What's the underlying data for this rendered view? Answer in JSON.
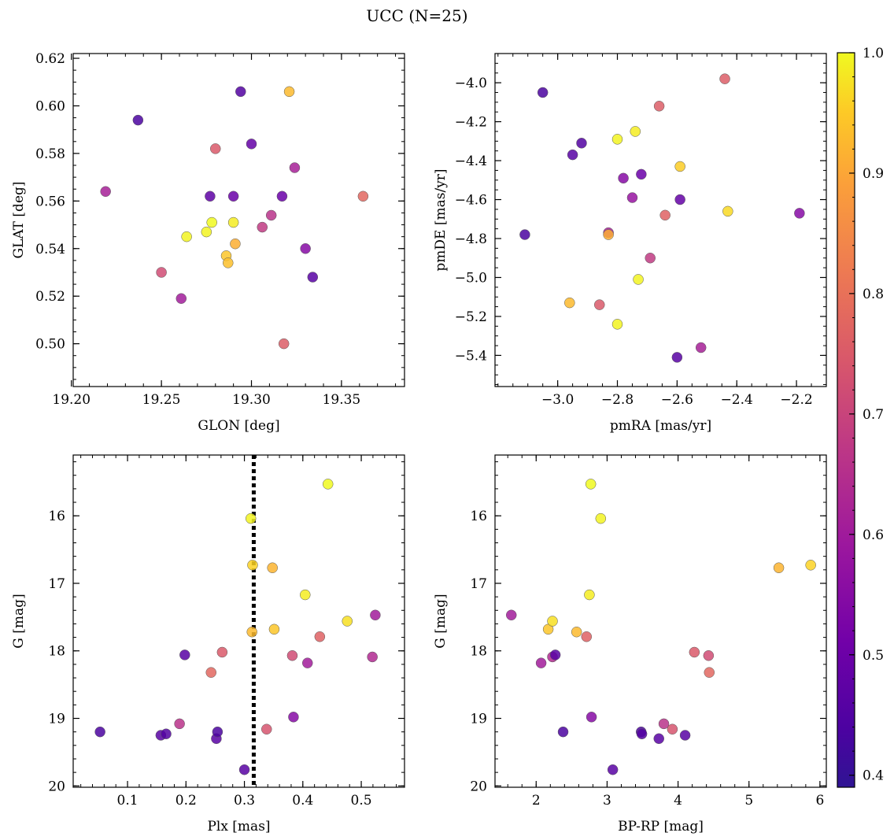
{
  "suptitle": "UCC (N=25)",
  "colorbar": {
    "range": [
      0.39,
      1.0
    ],
    "ticks": [
      "0.4",
      "0.5",
      "0.6",
      "0.7",
      "0.8",
      "0.9",
      "1.0"
    ],
    "tick_values": [
      0.4,
      0.5,
      0.6,
      0.7,
      0.8,
      0.9,
      1.0
    ],
    "colormap": "plasma"
  },
  "chart_data": [
    {
      "type": "scatter",
      "id": "a",
      "xlabel": "GLON [deg]",
      "ylabel": "GLAT [deg]",
      "xlim": [
        19.201,
        19.385
      ],
      "ylim": [
        0.482,
        0.622
      ],
      "yinvert": false,
      "xticks": [
        {
          "v": 19.2,
          "l": "19.20"
        },
        {
          "v": 19.25,
          "l": "19.25"
        },
        {
          "v": 19.3,
          "l": "19.30"
        },
        {
          "v": 19.35,
          "l": "19.35"
        }
      ],
      "yticks": [
        {
          "v": 0.5,
          "l": "0.50"
        },
        {
          "v": 0.52,
          "l": "0.52"
        },
        {
          "v": 0.54,
          "l": "0.54"
        },
        {
          "v": 0.56,
          "l": "0.56"
        },
        {
          "v": 0.58,
          "l": "0.58"
        },
        {
          "v": 0.6,
          "l": "0.60"
        },
        {
          "v": 0.62,
          "l": "0.62"
        }
      ],
      "xminor": 0.01,
      "yminor": 0.005,
      "points": [
        {
          "x": 19.237,
          "y": 0.594,
          "c": 0.42
        },
        {
          "x": 19.219,
          "y": 0.564,
          "c": 0.58
        },
        {
          "x": 19.25,
          "y": 0.53,
          "c": 0.68
        },
        {
          "x": 19.261,
          "y": 0.519,
          "c": 0.57
        },
        {
          "x": 19.264,
          "y": 0.545,
          "c": 0.99
        },
        {
          "x": 19.275,
          "y": 0.547,
          "c": 0.99
        },
        {
          "x": 19.277,
          "y": 0.562,
          "c": 0.45
        },
        {
          "x": 19.278,
          "y": 0.551,
          "c": 1.0
        },
        {
          "x": 19.28,
          "y": 0.582,
          "c": 0.71
        },
        {
          "x": 19.286,
          "y": 0.537,
          "c": 0.92
        },
        {
          "x": 19.287,
          "y": 0.534,
          "c": 0.91
        },
        {
          "x": 19.29,
          "y": 0.551,
          "c": 0.98
        },
        {
          "x": 19.29,
          "y": 0.562,
          "c": 0.47
        },
        {
          "x": 19.291,
          "y": 0.542,
          "c": 0.88
        },
        {
          "x": 19.294,
          "y": 0.606,
          "c": 0.43
        },
        {
          "x": 19.3,
          "y": 0.584,
          "c": 0.46
        },
        {
          "x": 19.306,
          "y": 0.549,
          "c": 0.64
        },
        {
          "x": 19.311,
          "y": 0.554,
          "c": 0.62
        },
        {
          "x": 19.317,
          "y": 0.562,
          "c": 0.47
        },
        {
          "x": 19.318,
          "y": 0.5,
          "c": 0.72
        },
        {
          "x": 19.321,
          "y": 0.606,
          "c": 0.9
        },
        {
          "x": 19.324,
          "y": 0.574,
          "c": 0.58
        },
        {
          "x": 19.33,
          "y": 0.54,
          "c": 0.52
        },
        {
          "x": 19.334,
          "y": 0.528,
          "c": 0.44
        },
        {
          "x": 19.362,
          "y": 0.562,
          "c": 0.74
        }
      ]
    },
    {
      "type": "scatter",
      "id": "b",
      "xlabel": "pmRA [mas/yr]",
      "ylabel": "pmDE [mas/yr]",
      "xlim": [
        -3.21,
        -2.1
      ],
      "ylim": [
        -5.56,
        -3.85
      ],
      "yinvert": false,
      "xticks": [
        {
          "v": -3.0,
          "l": "−3.0"
        },
        {
          "v": -2.8,
          "l": "−2.8"
        },
        {
          "v": -2.6,
          "l": "−2.6"
        },
        {
          "v": -2.4,
          "l": "−2.4"
        },
        {
          "v": -2.2,
          "l": "−2.2"
        }
      ],
      "yticks": [
        {
          "v": -5.4,
          "l": "−5.4"
        },
        {
          "v": -5.2,
          "l": "−5.2"
        },
        {
          "v": -5.0,
          "l": "−5.0"
        },
        {
          "v": -4.8,
          "l": "−4.8"
        },
        {
          "v": -4.6,
          "l": "−4.6"
        },
        {
          "v": -4.4,
          "l": "−4.4"
        },
        {
          "v": -4.2,
          "l": "−4.2"
        },
        {
          "v": -4.0,
          "l": "−4.0"
        }
      ],
      "xminor": 0.05,
      "yminor": 0.05,
      "points": [
        {
          "x": -3.05,
          "y": -4.05,
          "c": 0.42
        },
        {
          "x": -3.11,
          "y": -4.78,
          "c": 0.42
        },
        {
          "x": -2.95,
          "y": -4.37,
          "c": 0.44
        },
        {
          "x": -2.92,
          "y": -4.31,
          "c": 0.43
        },
        {
          "x": -2.96,
          "y": -5.13,
          "c": 0.9
        },
        {
          "x": -2.86,
          "y": -5.14,
          "c": 0.71
        },
        {
          "x": -2.83,
          "y": -4.77,
          "c": 0.58
        },
        {
          "x": -2.83,
          "y": -4.78,
          "c": 0.88
        },
        {
          "x": -2.8,
          "y": -4.29,
          "c": 0.99
        },
        {
          "x": -2.8,
          "y": -5.24,
          "c": 0.99
        },
        {
          "x": -2.78,
          "y": -4.49,
          "c": 0.52
        },
        {
          "x": -2.75,
          "y": -4.59,
          "c": 0.55
        },
        {
          "x": -2.74,
          "y": -4.25,
          "c": 0.98
        },
        {
          "x": -2.73,
          "y": -5.01,
          "c": 0.99
        },
        {
          "x": -2.72,
          "y": -4.47,
          "c": 0.47
        },
        {
          "x": -2.69,
          "y": -4.9,
          "c": 0.64
        },
        {
          "x": -2.66,
          "y": -4.12,
          "c": 0.72
        },
        {
          "x": -2.64,
          "y": -4.68,
          "c": 0.73
        },
        {
          "x": -2.6,
          "y": -5.41,
          "c": 0.44
        },
        {
          "x": -2.59,
          "y": -4.6,
          "c": 0.46
        },
        {
          "x": -2.59,
          "y": -4.43,
          "c": 0.93
        },
        {
          "x": -2.52,
          "y": -5.36,
          "c": 0.58
        },
        {
          "x": -2.44,
          "y": -3.98,
          "c": 0.72
        },
        {
          "x": -2.43,
          "y": -4.66,
          "c": 0.95
        },
        {
          "x": -2.19,
          "y": -4.67,
          "c": 0.52
        }
      ]
    },
    {
      "type": "scatter",
      "id": "c",
      "xlabel": "Plx [mas]",
      "ylabel": "G [mag]",
      "xlim": [
        0.007,
        0.574
      ],
      "ylim": [
        15.1,
        20.02
      ],
      "yinvert": true,
      "vline": 0.316,
      "xticks": [
        {
          "v": 0.1,
          "l": "0.1"
        },
        {
          "v": 0.2,
          "l": "0.2"
        },
        {
          "v": 0.3,
          "l": "0.3"
        },
        {
          "v": 0.4,
          "l": "0.4"
        },
        {
          "v": 0.5,
          "l": "0.5"
        }
      ],
      "yticks": [
        {
          "v": 16,
          "l": "16"
        },
        {
          "v": 17,
          "l": "17"
        },
        {
          "v": 18,
          "l": "18"
        },
        {
          "v": 19,
          "l": "19"
        },
        {
          "v": 20,
          "l": "20"
        }
      ],
      "xminor": 0.02,
      "yminor": 0.2,
      "points": [
        {
          "x": 0.053,
          "y": 19.2,
          "c": 0.42
        },
        {
          "x": 0.157,
          "y": 19.25,
          "c": 0.44
        },
        {
          "x": 0.166,
          "y": 19.23,
          "c": 0.43
        },
        {
          "x": 0.189,
          "y": 19.08,
          "c": 0.62
        },
        {
          "x": 0.198,
          "y": 18.06,
          "c": 0.44
        },
        {
          "x": 0.243,
          "y": 18.32,
          "c": 0.74
        },
        {
          "x": 0.252,
          "y": 19.3,
          "c": 0.44
        },
        {
          "x": 0.254,
          "y": 19.2,
          "c": 0.42
        },
        {
          "x": 0.262,
          "y": 18.02,
          "c": 0.71
        },
        {
          "x": 0.3,
          "y": 19.76,
          "c": 0.44
        },
        {
          "x": 0.311,
          "y": 16.04,
          "c": 0.99
        },
        {
          "x": 0.313,
          "y": 17.72,
          "c": 0.9
        },
        {
          "x": 0.314,
          "y": 16.73,
          "c": 0.94
        },
        {
          "x": 0.338,
          "y": 19.16,
          "c": 0.7
        },
        {
          "x": 0.348,
          "y": 16.77,
          "c": 0.89
        },
        {
          "x": 0.351,
          "y": 17.68,
          "c": 0.92
        },
        {
          "x": 0.382,
          "y": 18.07,
          "c": 0.68
        },
        {
          "x": 0.384,
          "y": 18.98,
          "c": 0.52
        },
        {
          "x": 0.404,
          "y": 17.17,
          "c": 0.98
        },
        {
          "x": 0.408,
          "y": 18.18,
          "c": 0.57
        },
        {
          "x": 0.429,
          "y": 17.79,
          "c": 0.73
        },
        {
          "x": 0.443,
          "y": 15.53,
          "c": 1.0
        },
        {
          "x": 0.476,
          "y": 17.56,
          "c": 0.96
        },
        {
          "x": 0.519,
          "y": 18.09,
          "c": 0.6
        },
        {
          "x": 0.524,
          "y": 17.47,
          "c": 0.57
        }
      ]
    },
    {
      "type": "scatter",
      "id": "d",
      "xlabel": "BP-RP [mag]",
      "ylabel": "G [mag]",
      "xlim": [
        1.42,
        6.09
      ],
      "ylim": [
        15.1,
        20.02
      ],
      "yinvert": true,
      "xticks": [
        {
          "v": 2,
          "l": "2"
        },
        {
          "v": 3,
          "l": "3"
        },
        {
          "v": 4,
          "l": "4"
        },
        {
          "v": 5,
          "l": "5"
        },
        {
          "v": 6,
          "l": "6"
        }
      ],
      "yticks": [
        {
          "v": 16,
          "l": "16"
        },
        {
          "v": 17,
          "l": "17"
        },
        {
          "v": 18,
          "l": "18"
        },
        {
          "v": 19,
          "l": "19"
        },
        {
          "v": 20,
          "l": "20"
        }
      ],
      "xminor": 0.2,
      "yminor": 0.2,
      "points": [
        {
          "x": 1.65,
          "y": 17.47,
          "c": 0.57
        },
        {
          "x": 2.07,
          "y": 18.18,
          "c": 0.57
        },
        {
          "x": 2.17,
          "y": 17.68,
          "c": 0.92
        },
        {
          "x": 2.23,
          "y": 17.56,
          "c": 0.96
        },
        {
          "x": 2.23,
          "y": 18.09,
          "c": 0.6
        },
        {
          "x": 2.27,
          "y": 18.06,
          "c": 0.44
        },
        {
          "x": 2.38,
          "y": 19.2,
          "c": 0.42
        },
        {
          "x": 2.57,
          "y": 17.72,
          "c": 0.9
        },
        {
          "x": 2.71,
          "y": 17.79,
          "c": 0.73
        },
        {
          "x": 2.75,
          "y": 17.17,
          "c": 0.98
        },
        {
          "x": 2.77,
          "y": 15.53,
          "c": 1.0
        },
        {
          "x": 2.78,
          "y": 18.98,
          "c": 0.52
        },
        {
          "x": 2.91,
          "y": 16.04,
          "c": 0.99
        },
        {
          "x": 3.08,
          "y": 19.76,
          "c": 0.44
        },
        {
          "x": 3.48,
          "y": 19.2,
          "c": 0.42
        },
        {
          "x": 3.49,
          "y": 19.23,
          "c": 0.43
        },
        {
          "x": 3.73,
          "y": 19.3,
          "c": 0.44
        },
        {
          "x": 3.8,
          "y": 19.08,
          "c": 0.62
        },
        {
          "x": 3.92,
          "y": 19.16,
          "c": 0.7
        },
        {
          "x": 4.1,
          "y": 19.25,
          "c": 0.44
        },
        {
          "x": 4.23,
          "y": 18.02,
          "c": 0.71
        },
        {
          "x": 4.43,
          "y": 18.07,
          "c": 0.68
        },
        {
          "x": 4.44,
          "y": 18.32,
          "c": 0.74
        },
        {
          "x": 5.42,
          "y": 16.77,
          "c": 0.89
        },
        {
          "x": 5.87,
          "y": 16.73,
          "c": 0.94
        }
      ]
    }
  ]
}
